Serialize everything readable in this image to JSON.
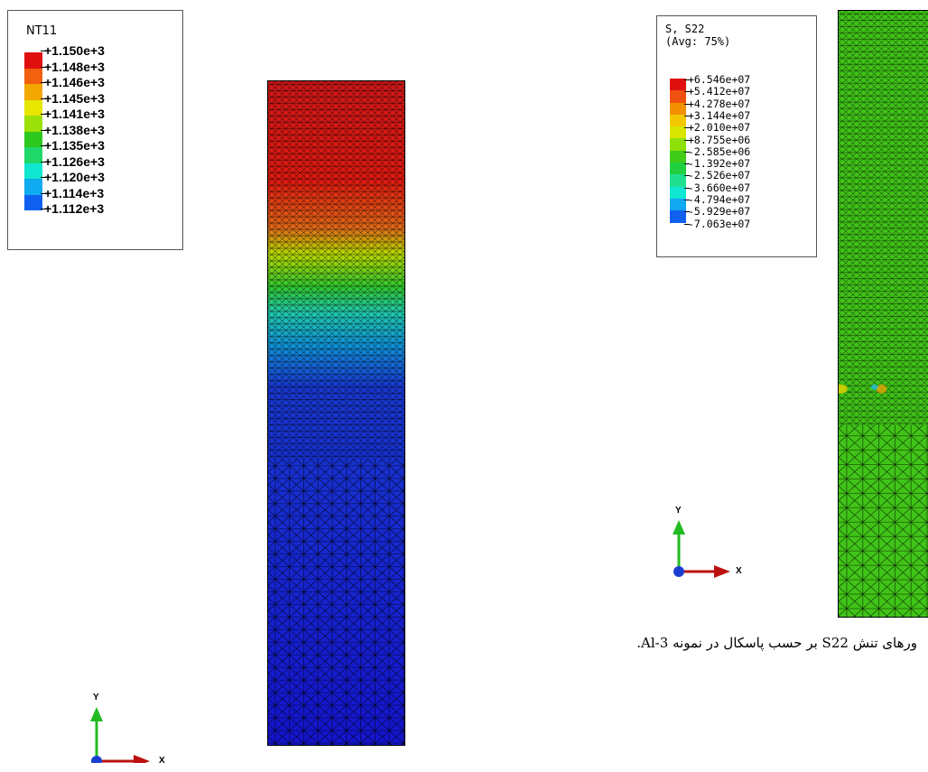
{
  "left_legend": {
    "title": "NT11",
    "labels": [
      "+1.150e+3",
      "+1.148e+3",
      "+1.146e+3",
      "+1.145e+3",
      "+1.141e+3",
      "+1.138e+3",
      "+1.135e+3",
      "+1.126e+3",
      "+1.120e+3",
      "+1.114e+3",
      "+1.112e+3"
    ],
    "colors": [
      "#e01010",
      "#f26010",
      "#f2a800",
      "#e6e600",
      "#9ce00a",
      "#2cc81e",
      "#20d86a",
      "#10e6d0",
      "#10aaf0",
      "#1060f0",
      "#1010d8"
    ]
  },
  "right_legend": {
    "title_line1": "S, S22",
    "title_line2": "(Avg: 75%)",
    "labels": [
      "+6.546e+07",
      "+5.412e+07",
      "+4.278e+07",
      "+3.144e+07",
      "+2.010e+07",
      "+8.755e+06",
      "-2.585e+06",
      "-1.392e+07",
      "-2.526e+07",
      "-3.660e+07",
      "-4.794e+07",
      "-5.929e+07",
      "-7.063e+07"
    ],
    "colors": [
      "#e01010",
      "#f05010",
      "#f29000",
      "#f2c800",
      "#d8e600",
      "#8ee00a",
      "#40cc18",
      "#20d040",
      "#20e090",
      "#10e6d0",
      "#10a8f0",
      "#1060f0",
      "#1010d8"
    ]
  },
  "axis_triad": {
    "y_label": "Y",
    "x_label": "X",
    "y_color": "#22bb22",
    "x_color": "#bb1111",
    "origin_color": "#1a3fd0"
  },
  "caption": "ورهای تنش S22 بر حسب پاسکال در نمونه Al-3."
}
